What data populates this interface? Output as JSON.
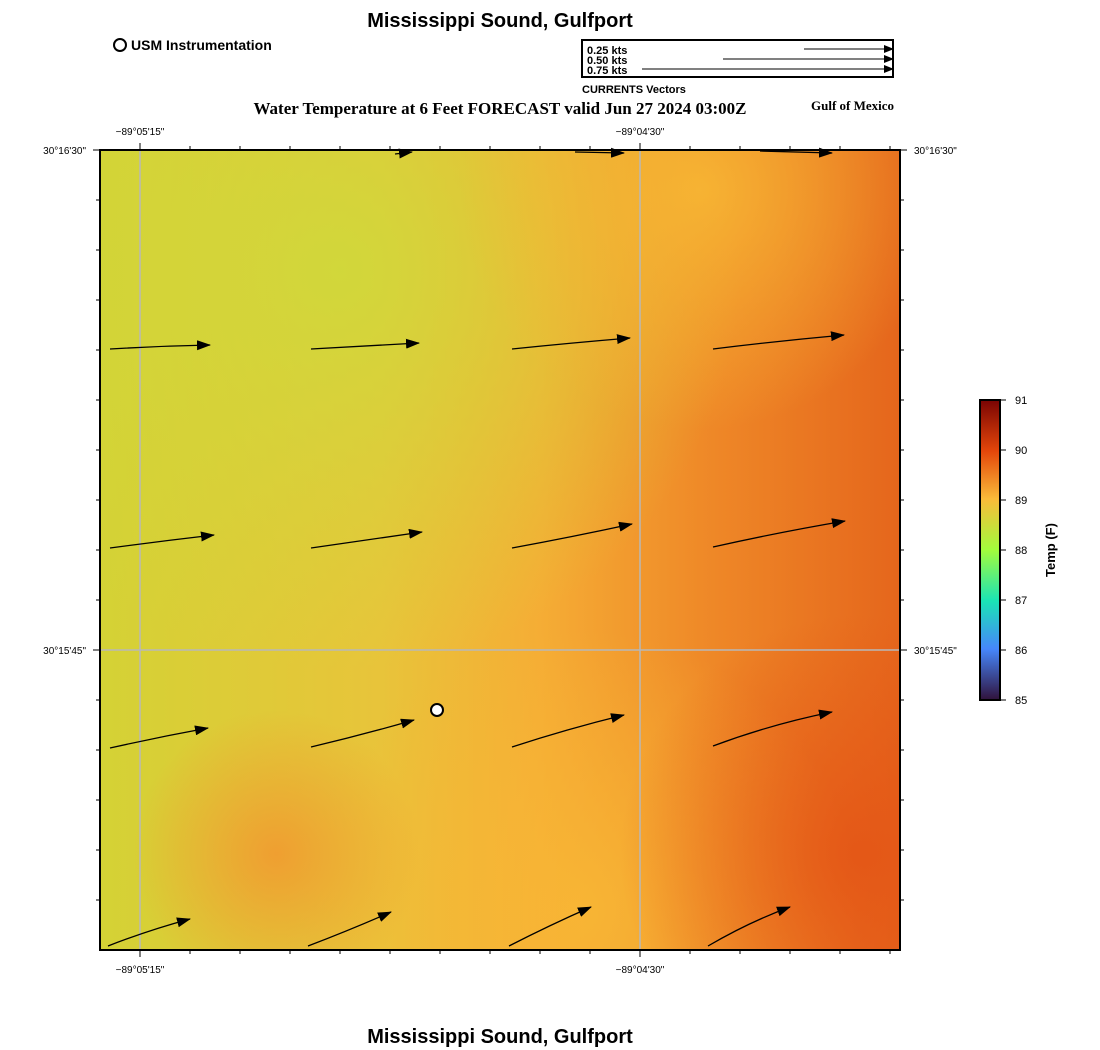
{
  "title": "Mississippi Sound, Gulfport",
  "bottom_title": "Mississippi Sound, Gulfport",
  "subtitle": "Water Temperature at 6 Feet FORECAST valid Jun 27 2024 03:00Z",
  "region_label": "Gulf of Mexico",
  "legend": {
    "station_label": "USM Instrumentation"
  },
  "vector_legend": {
    "caption": "CURRENTS Vectors",
    "items": [
      {
        "label": "0.25 kts",
        "speed": 0.25
      },
      {
        "label": "0.50 kts",
        "speed": 0.5
      },
      {
        "label": "0.75 kts",
        "speed": 0.75
      }
    ]
  },
  "axes": {
    "lon_ticks": [
      "−89°05'15\"",
      "−89°04'30\""
    ],
    "lat_ticks": [
      "30°16'30\"",
      "30°15'45\""
    ]
  },
  "colorbar": {
    "title": "Temp (F)",
    "min": 85,
    "max": 91,
    "ticks": [
      "85",
      "86",
      "87",
      "88",
      "89",
      "90",
      "91"
    ],
    "colors": [
      "#30123b",
      "#4686fb",
      "#1ae4b6",
      "#a2fc3c",
      "#fabb39",
      "#e4460a",
      "#7a0403"
    ]
  },
  "station": {
    "name": "USM Instrumentation"
  }
}
